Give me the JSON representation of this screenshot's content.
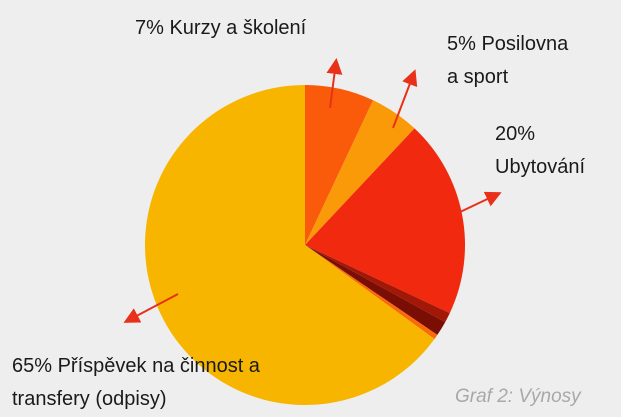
{
  "chart_data": {
    "type": "pie",
    "caption": "Graf 2: Výnosy",
    "categories": [
      "Kurzy a školení",
      "Posilovna a sport",
      "Ubytování",
      null,
      null,
      null,
      "Příspěvek na činnost a transfery (odpisy)"
    ],
    "values": [
      7,
      5,
      20,
      1,
      1.5,
      0.5,
      65
    ],
    "value_labels": [
      "7%",
      "5%",
      "20%",
      null,
      null,
      null,
      "65%"
    ],
    "colors": [
      "#f95b0a",
      "#fb9a08",
      "#f0290f",
      "#a31707",
      "#7a0e04",
      "#fb6a0a",
      "#f7b500"
    ]
  }
}
